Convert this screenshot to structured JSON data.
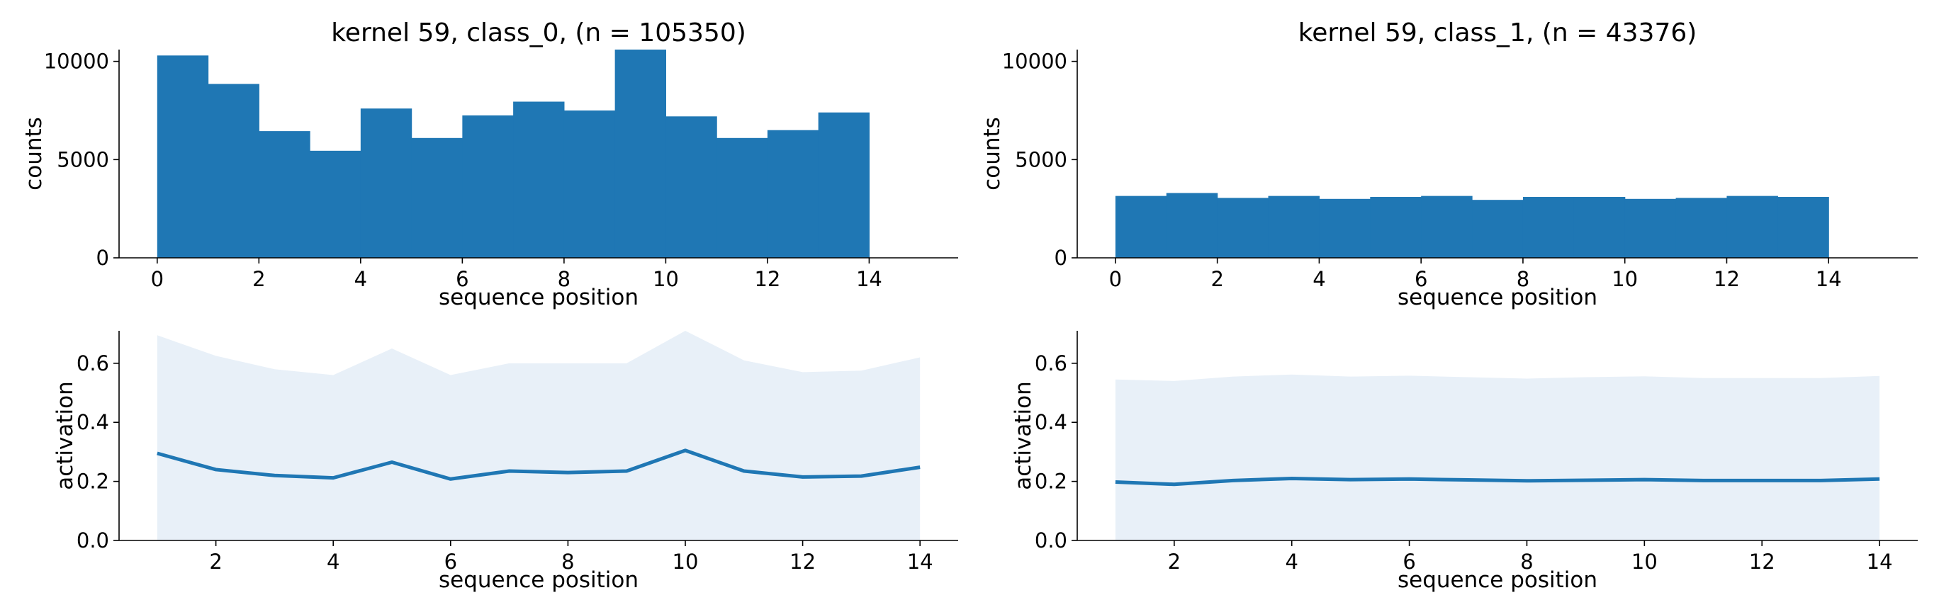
{
  "chart_data": [
    {
      "type": "bar",
      "title": "kernel 59, class_0, (n = 105350)",
      "xlabel": "sequence position",
      "ylabel": "counts",
      "xlim": [
        -0.75,
        15.75
      ],
      "ylim": [
        0,
        10600
      ],
      "xticks": [
        0,
        2,
        4,
        6,
        8,
        10,
        12,
        14
      ],
      "yticks": [
        0,
        5000,
        10000
      ],
      "bin_edges": [
        0,
        1,
        2,
        3,
        4,
        5,
        6,
        7,
        8,
        9,
        10,
        11,
        12,
        13,
        14
      ],
      "values": [
        10300,
        8850,
        6450,
        5450,
        7600,
        6100,
        7250,
        7950,
        7500,
        10600,
        7200,
        6100,
        6500,
        7400
      ],
      "color": "#1f77b4",
      "grid": false,
      "legend": "none"
    },
    {
      "type": "bar",
      "title": "kernel 59, class_1, (n = 43376)",
      "xlabel": "sequence position",
      "ylabel": "counts",
      "xlim": [
        -0.75,
        15.75
      ],
      "ylim": [
        0,
        10600
      ],
      "xticks": [
        0,
        2,
        4,
        6,
        8,
        10,
        12,
        14
      ],
      "yticks": [
        0,
        5000,
        10000
      ],
      "bin_edges": [
        0,
        1,
        2,
        3,
        4,
        5,
        6,
        7,
        8,
        9,
        10,
        11,
        12,
        13,
        14
      ],
      "values": [
        3150,
        3300,
        3050,
        3150,
        3000,
        3100,
        3150,
        2950,
        3100,
        3100,
        3000,
        3050,
        3150,
        3100
      ],
      "color": "#1f77b4",
      "grid": false,
      "legend": "none"
    },
    {
      "type": "area",
      "title": "",
      "xlabel": "sequence position",
      "ylabel": "activation",
      "xlim": [
        0.35,
        14.65
      ],
      "ylim": [
        0,
        0.71
      ],
      "xticks": [
        2,
        4,
        6,
        8,
        10,
        12,
        14
      ],
      "yticks": [
        0.0,
        0.2,
        0.4,
        0.6
      ],
      "x": [
        1,
        2,
        3,
        4,
        5,
        6,
        7,
        8,
        9,
        10,
        11,
        12,
        13,
        14
      ],
      "mean": [
        0.295,
        0.24,
        0.22,
        0.212,
        0.265,
        0.208,
        0.235,
        0.23,
        0.235,
        0.305,
        0.235,
        0.215,
        0.218,
        0.248
      ],
      "band_upper": [
        0.695,
        0.625,
        0.58,
        0.56,
        0.65,
        0.56,
        0.6,
        0.6,
        0.6,
        0.71,
        0.61,
        0.57,
        0.575,
        0.62
      ],
      "band_lower": [
        0,
        0,
        0,
        0,
        0,
        0,
        0,
        0,
        0,
        0,
        0,
        0,
        0,
        0
      ],
      "line_color": "#1f77b4",
      "band_color": "#e8f0f8",
      "grid": false,
      "legend": "none"
    },
    {
      "type": "area",
      "title": "",
      "xlabel": "sequence position",
      "ylabel": "activation",
      "xlim": [
        0.35,
        14.65
      ],
      "ylim": [
        0,
        0.71
      ],
      "xticks": [
        2,
        4,
        6,
        8,
        10,
        12,
        14
      ],
      "yticks": [
        0.0,
        0.2,
        0.4,
        0.6
      ],
      "x": [
        1,
        2,
        3,
        4,
        5,
        6,
        7,
        8,
        9,
        10,
        11,
        12,
        13,
        14
      ],
      "mean": [
        0.198,
        0.19,
        0.203,
        0.21,
        0.206,
        0.208,
        0.205,
        0.202,
        0.204,
        0.206,
        0.203,
        0.203,
        0.203,
        0.208
      ],
      "band_upper": [
        0.545,
        0.54,
        0.555,
        0.562,
        0.555,
        0.558,
        0.553,
        0.548,
        0.553,
        0.556,
        0.55,
        0.55,
        0.55,
        0.557
      ],
      "band_lower": [
        0,
        0,
        0,
        0,
        0,
        0,
        0,
        0,
        0,
        0,
        0,
        0,
        0,
        0
      ],
      "line_color": "#1f77b4",
      "band_color": "#e8f0f8",
      "grid": false,
      "legend": "none"
    }
  ]
}
